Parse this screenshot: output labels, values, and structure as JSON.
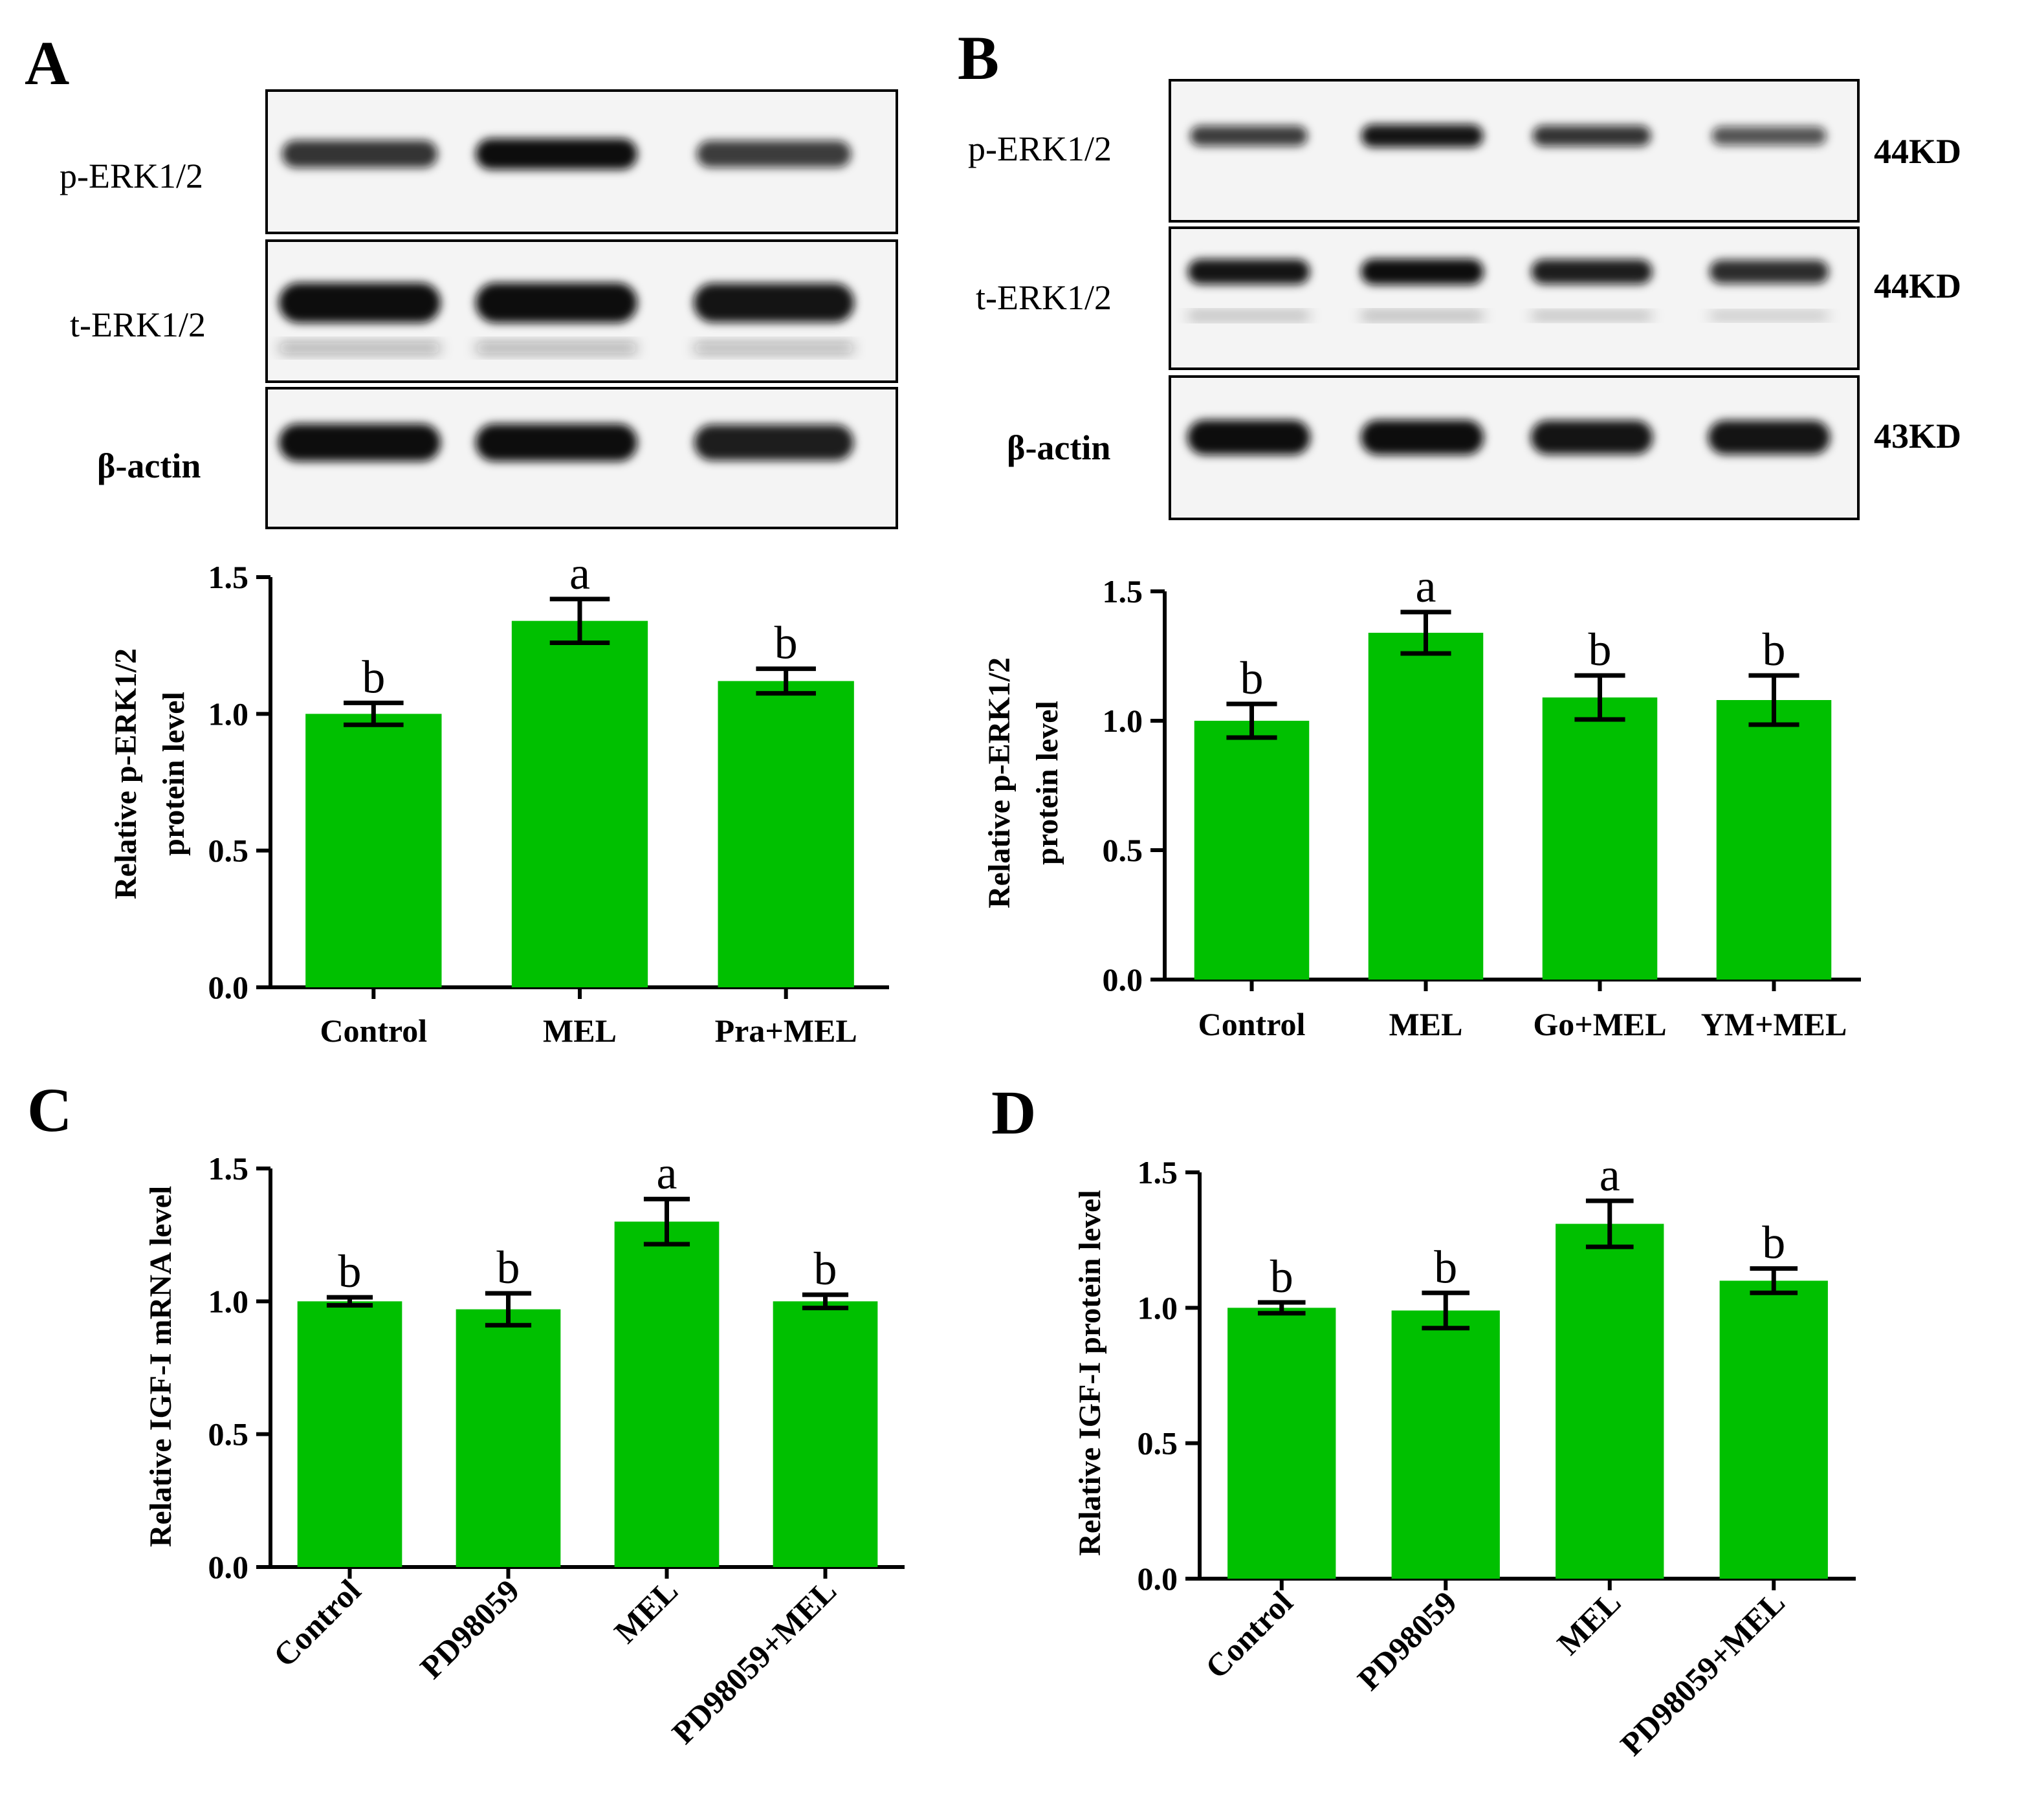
{
  "colors": {
    "bar": "#00c000",
    "axis": "#000000",
    "blot_background": "#f4f4f4",
    "band": "#111111"
  },
  "blots": [
    {
      "panel": "A",
      "rows": [
        {
          "label": "p-ERK1/2",
          "intensity": [
            0.75,
            1.0,
            0.7
          ]
        },
        {
          "label": "t-ERK1/2",
          "intensity": [
            1.0,
            1.0,
            0.95
          ]
        },
        {
          "label": "β-actin",
          "intensity": [
            1.0,
            1.0,
            0.9
          ]
        }
      ],
      "markers": []
    },
    {
      "panel": "B",
      "rows": [
        {
          "label": "p-ERK1/2",
          "intensity": [
            0.7,
            0.95,
            0.75,
            0.55
          ]
        },
        {
          "label": "t-ERK1/2",
          "intensity": [
            0.95,
            1.0,
            0.9,
            0.8
          ]
        },
        {
          "label": "β-actin",
          "intensity": [
            1.0,
            1.0,
            0.95,
            0.95
          ]
        }
      ],
      "markers": [
        "44KD",
        "44KD",
        "43KD"
      ]
    }
  ],
  "chart_data": [
    {
      "panel": "A",
      "type": "bar",
      "categories": [
        "Control",
        "MEL",
        "Pra+MEL"
      ],
      "values": [
        1.0,
        1.34,
        1.12
      ],
      "errors": [
        0.04,
        0.08,
        0.045
      ],
      "annotations": [
        "b",
        "a",
        "b"
      ],
      "ylabel_lines": [
        "Relative p-ERK1/2",
        "protein level"
      ],
      "ylim": [
        0,
        1.5
      ],
      "yticks": [
        "0.0",
        "0.5",
        "1.0",
        "1.5"
      ],
      "xlabel_rotated": false
    },
    {
      "panel": "B",
      "type": "bar",
      "categories": [
        "Control",
        "MEL",
        "Go+MEL",
        "YM+MEL"
      ],
      "values": [
        1.0,
        1.34,
        1.09,
        1.08
      ],
      "errors": [
        0.065,
        0.08,
        0.085,
        0.095
      ],
      "annotations": [
        "b",
        "a",
        "b",
        "b"
      ],
      "ylabel_lines": [
        "Relative p-ERK1/2",
        "protein level"
      ],
      "ylim": [
        0,
        1.5
      ],
      "yticks": [
        "0.0",
        "0.5",
        "1.0",
        "1.5"
      ],
      "xlabel_rotated": false
    },
    {
      "panel": "C",
      "type": "bar",
      "categories": [
        "Control",
        "PD98059",
        "MEL",
        "PD98059+MEL"
      ],
      "values": [
        1.0,
        0.97,
        1.3,
        1.0
      ],
      "errors": [
        0.015,
        0.06,
        0.085,
        0.025
      ],
      "annotations": [
        "b",
        "b",
        "a",
        "b"
      ],
      "ylabel_lines": [
        "Relative IGF-I mRNA level"
      ],
      "ylim": [
        0,
        1.5
      ],
      "yticks": [
        "0.0",
        "0.5",
        "1.0",
        "1.5"
      ],
      "xlabel_rotated": true
    },
    {
      "panel": "D",
      "type": "bar",
      "categories": [
        "Control",
        "PD98059",
        "MEL",
        "PD98059+MEL"
      ],
      "values": [
        1.0,
        0.99,
        1.31,
        1.1
      ],
      "errors": [
        0.02,
        0.065,
        0.085,
        0.045
      ],
      "annotations": [
        "b",
        "b",
        "a",
        "b"
      ],
      "ylabel_lines": [
        "Relative IGF-I protein level"
      ],
      "ylim": [
        0,
        1.5
      ],
      "yticks": [
        "0.0",
        "0.5",
        "1.0",
        "1.5"
      ],
      "xlabel_rotated": true
    }
  ]
}
